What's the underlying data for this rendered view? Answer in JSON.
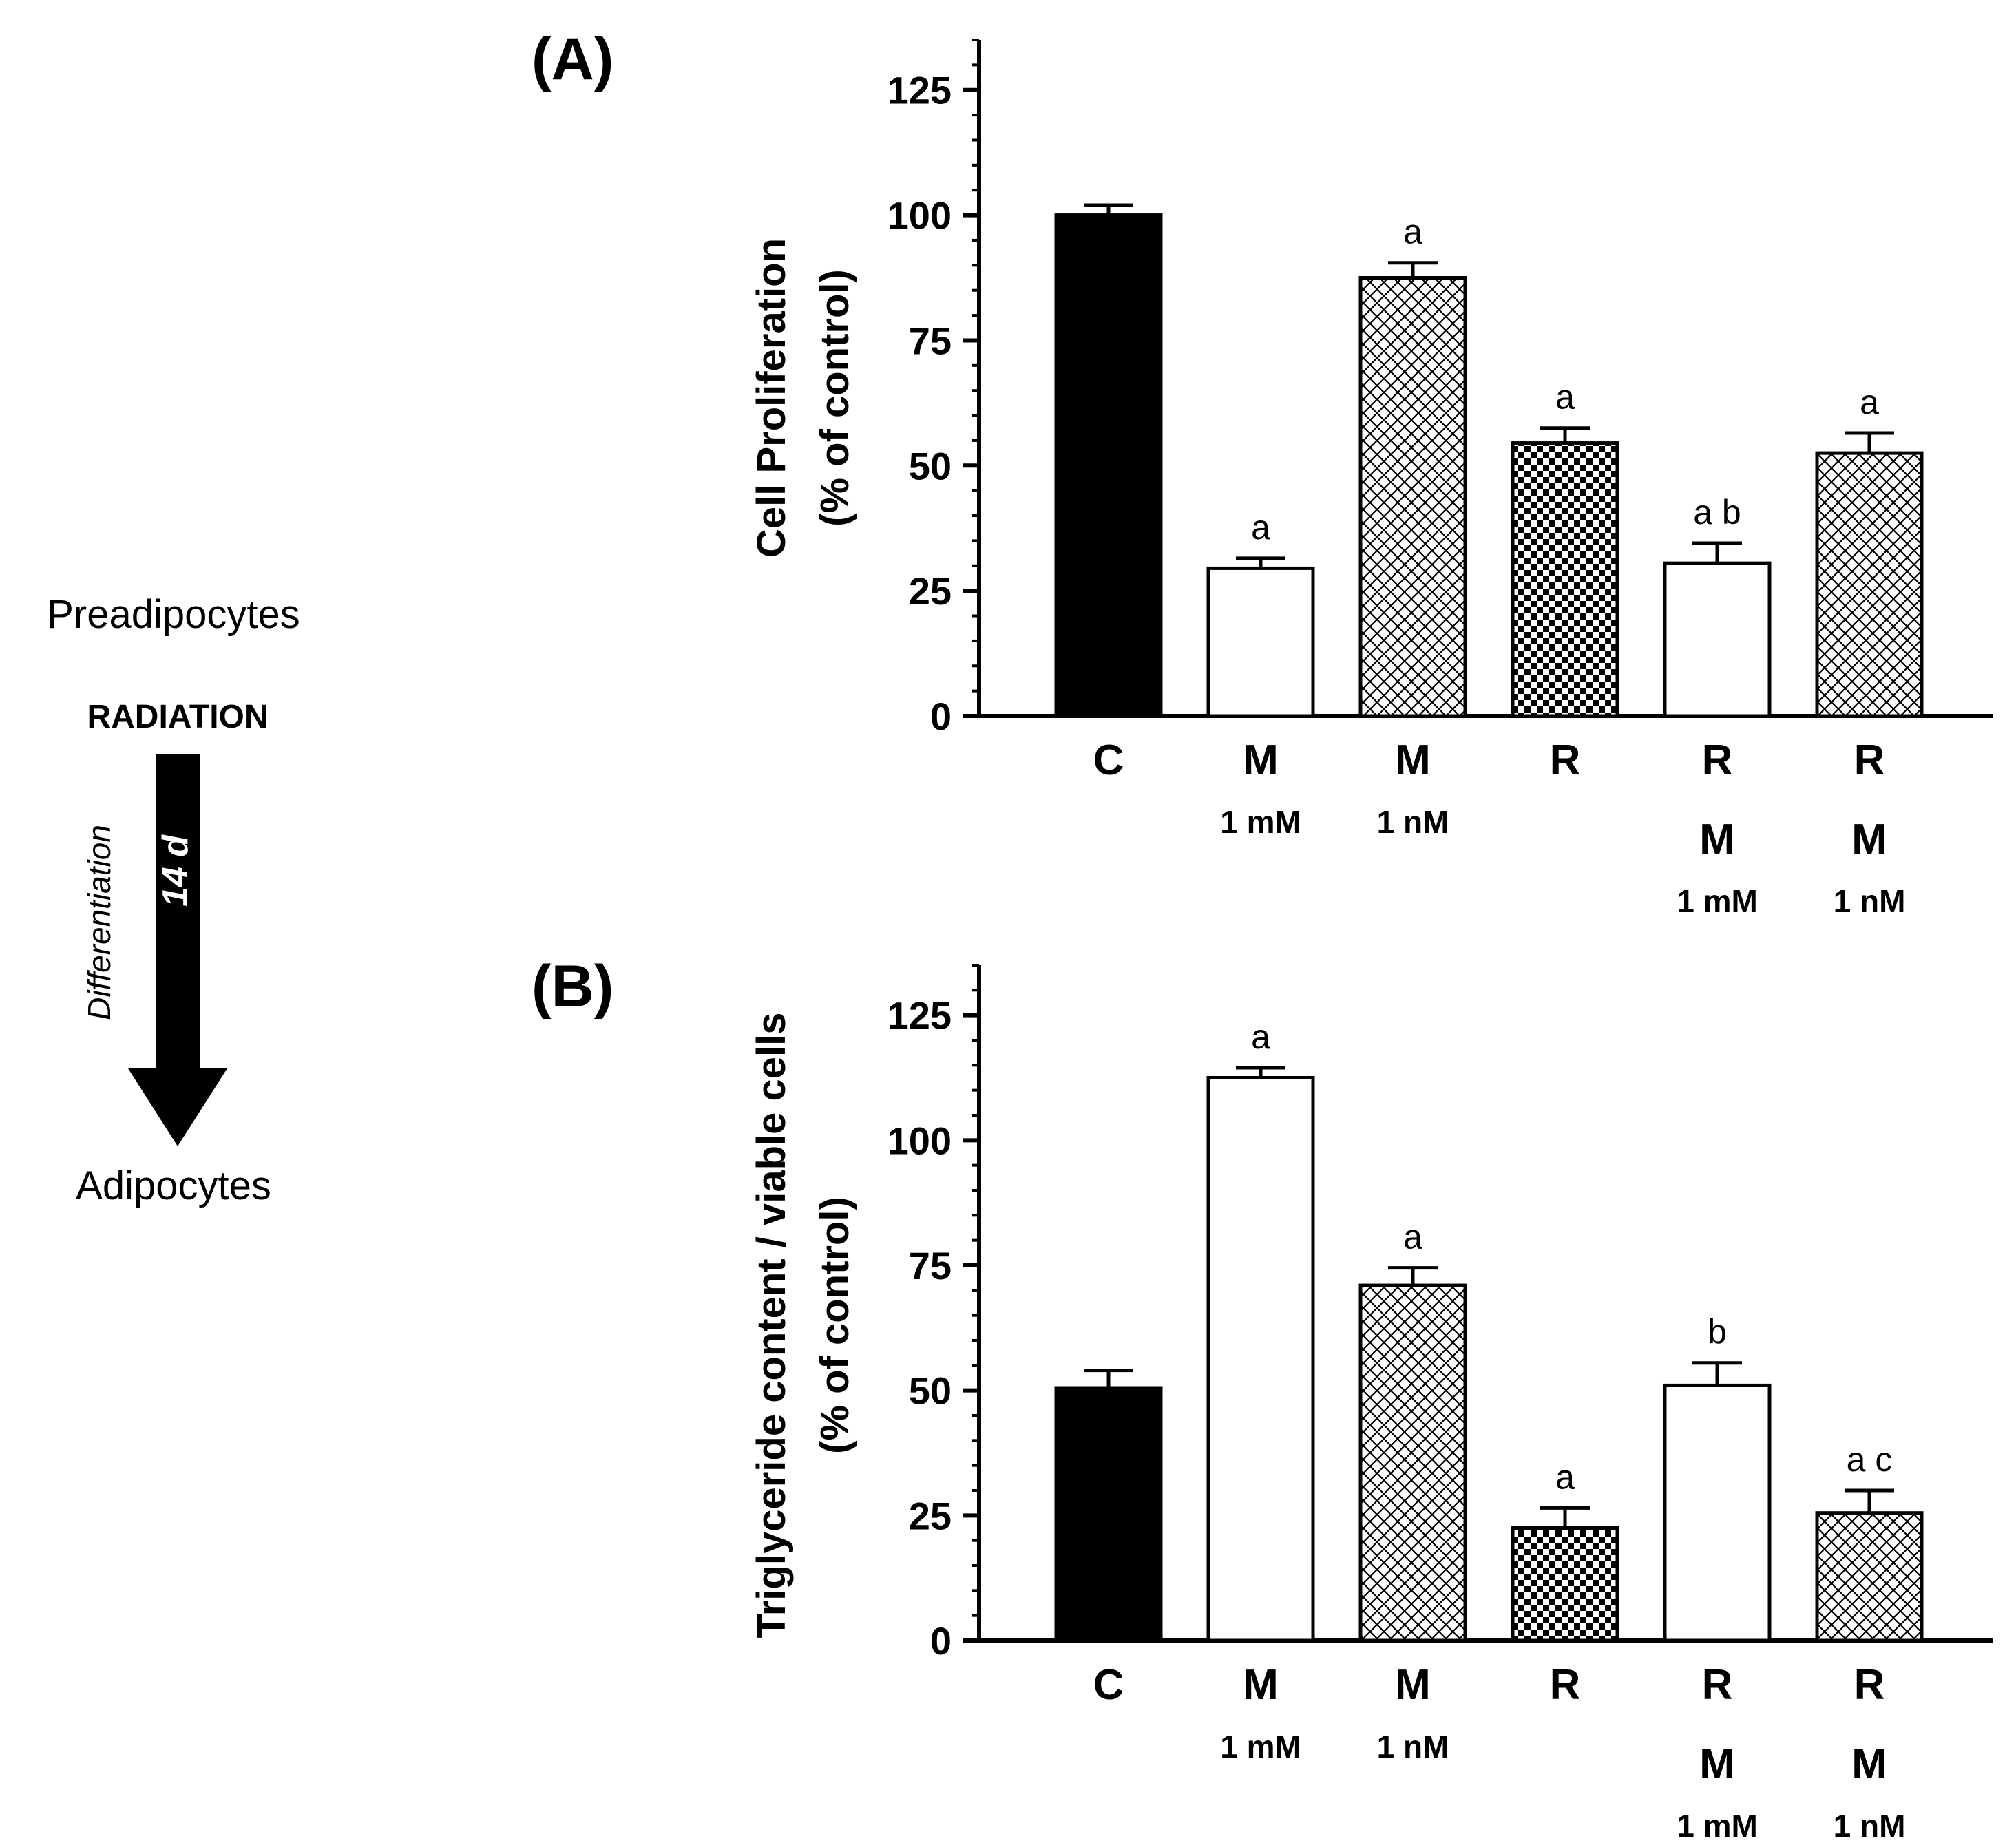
{
  "schematic": {
    "top_label": "Preadipocytes",
    "treatment_label": "RADIATION",
    "arrow_side_label": "Differentiation",
    "arrow_duration_label": "14 d",
    "bottom_label": "Adipocytes"
  },
  "colors": {
    "ink": "#000000",
    "background": "#ffffff"
  },
  "chart_data": [
    {
      "panel": "(A)",
      "type": "bar",
      "ylabel_line1": "Cell Proliferation",
      "ylabel_line2": "(% of control)",
      "ylim": [
        0,
        135
      ],
      "yticks": [
        0,
        25,
        50,
        75,
        100,
        125
      ],
      "minor_tick_step": 5,
      "categories": [
        {
          "line1": "C",
          "line2": "",
          "line3": "",
          "line4": ""
        },
        {
          "line1": "M",
          "line2": "1 mM",
          "line3": "",
          "line4": ""
        },
        {
          "line1": "M",
          "line2": "1 nM",
          "line3": "",
          "line4": ""
        },
        {
          "line1": "R",
          "line2": "",
          "line3": "",
          "line4": ""
        },
        {
          "line1": "R",
          "line2": "",
          "line3": "M",
          "line4": "1 mM"
        },
        {
          "line1": "R",
          "line2": "",
          "line3": "M",
          "line4": "1 nM"
        }
      ],
      "values": [
        100,
        29.5,
        87.5,
        54.5,
        30.5,
        52.5
      ],
      "errors": [
        2,
        2,
        3,
        3,
        4,
        4
      ],
      "patterns": [
        "solid",
        "white",
        "crosshatch",
        "checker",
        "white",
        "crosshatch"
      ],
      "annotations": [
        "",
        "a",
        "a",
        "a",
        "a b",
        "a"
      ]
    },
    {
      "panel": "(B)",
      "type": "bar",
      "ylabel_line1": "Triglyceride content / viable cells",
      "ylabel_line2": "(% of control)",
      "ylim": [
        0,
        135
      ],
      "yticks": [
        0,
        25,
        50,
        75,
        100,
        125
      ],
      "minor_tick_step": 5,
      "categories": [
        {
          "line1": "C",
          "line2": "",
          "line3": "",
          "line4": ""
        },
        {
          "line1": "M",
          "line2": "1 mM",
          "line3": "",
          "line4": ""
        },
        {
          "line1": "M",
          "line2": "1 nM",
          "line3": "",
          "line4": ""
        },
        {
          "line1": "R",
          "line2": "",
          "line3": "",
          "line4": ""
        },
        {
          "line1": "R",
          "line2": "",
          "line3": "M",
          "line4": "1 mM"
        },
        {
          "line1": "R",
          "line2": "",
          "line3": "M",
          "line4": "1 nM"
        }
      ],
      "values": [
        50.5,
        112.5,
        71,
        22.5,
        51,
        25.5
      ],
      "errors": [
        3.5,
        2,
        3.5,
        4,
        4.5,
        4.5
      ],
      "patterns": [
        "solid",
        "white",
        "crosshatch",
        "checker",
        "white",
        "crosshatch"
      ],
      "annotations": [
        "",
        "a",
        "a",
        "a",
        "b",
        "a c"
      ]
    }
  ]
}
